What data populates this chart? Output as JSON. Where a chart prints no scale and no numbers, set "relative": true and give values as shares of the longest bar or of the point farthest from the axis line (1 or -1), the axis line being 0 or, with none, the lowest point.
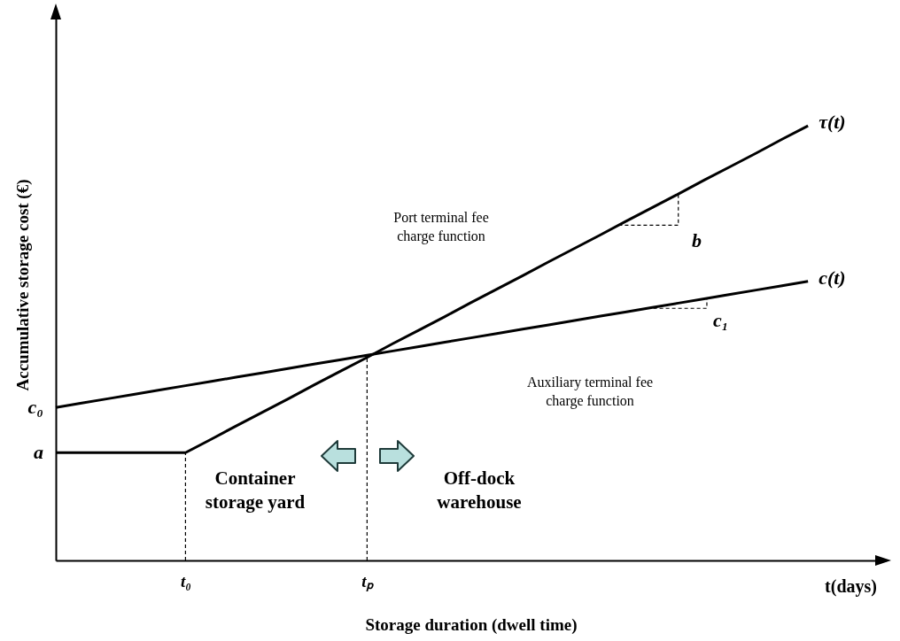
{
  "chart_data": {
    "type": "line",
    "relative": true,
    "xlabel": "Storage duration (dwell time)",
    "ylabel": "Accumulative storage cost (€)",
    "categories": [
      null,
      null,
      null,
      null,
      null,
      "t₀",
      null,
      null,
      null,
      null,
      null,
      null,
      "tₚ",
      null,
      null,
      null,
      null,
      null,
      null,
      null,
      null,
      null,
      null,
      null,
      null,
      null,
      null,
      null,
      null,
      null,
      null,
      null,
      null
    ],
    "series": [
      {
        "name": "τ(t)",
        "color": "#000000",
        "values": [
          0.248,
          0.248,
          0.248,
          0.248,
          0.248,
          0.248,
          0.279,
          0.311,
          0.342,
          0.373,
          0.405,
          0.436,
          0.467,
          0.499,
          0.53,
          0.561,
          0.593,
          0.624,
          0.655,
          0.687,
          0.718,
          0.749,
          0.781,
          0.812,
          0.843,
          0.875,
          0.906,
          0.937,
          0.969,
          1,
          null,
          null,
          null
        ]
      },
      {
        "name": "c(t)",
        "color": "#000000",
        "values": [
          0.352,
          0.362,
          0.372,
          0.382,
          0.392,
          0.402,
          0.412,
          0.422,
          0.432,
          0.442,
          0.452,
          0.462,
          0.472,
          0.482,
          0.492,
          0.502,
          0.512,
          0.522,
          0.532,
          0.542,
          0.552,
          0.562,
          0.572,
          0.582,
          0.592,
          0.602,
          0.612,
          0.622,
          0.632,
          0.642,
          null,
          null,
          null
        ]
      }
    ],
    "ref_lines": [
      {
        "axis": "x",
        "value": "t₀",
        "line_style": "dashed",
        "color": "#000000"
      },
      {
        "axis": "x",
        "value": "tₚ",
        "line_style": "dashed",
        "color": "#000000"
      }
    ],
    "annotations": [
      "t(days)",
      "a",
      "c₀",
      "b",
      "c₁",
      "Port terminal fee\ncharge function",
      "Auxiliary terminal fee\ncharge function",
      "Container\nstorage yard",
      "Off-dock\nwarehouse"
    ]
  }
}
